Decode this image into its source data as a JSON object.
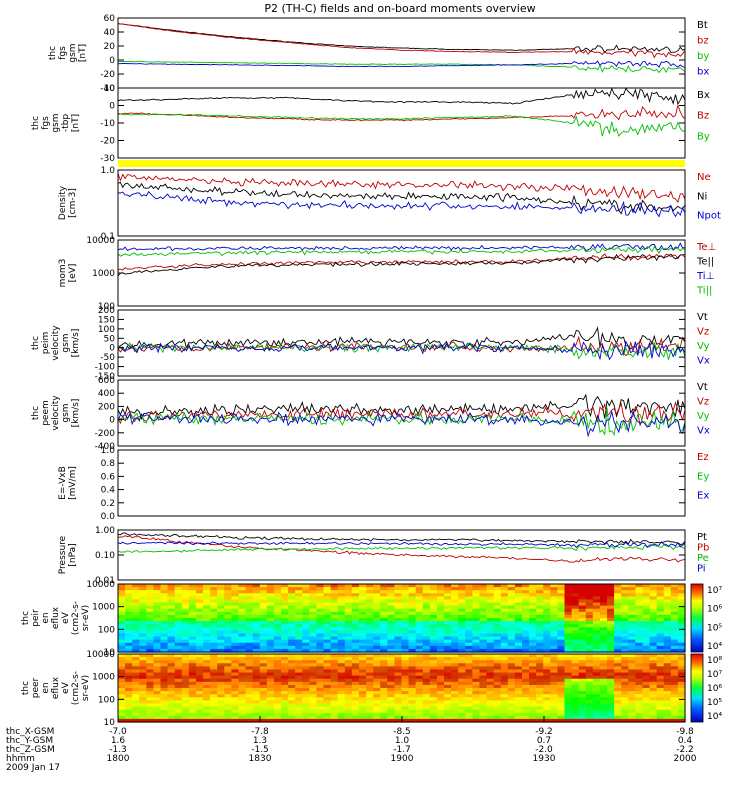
{
  "title": "P2 (TH-C) fields and on-board moments overview",
  "colors": {
    "black": "#000000",
    "red": "#c00000",
    "green": "#00c000",
    "blue": "#0000d0",
    "yellow": "#ffff00"
  },
  "chart_data": [
    {
      "type": "line",
      "ylabel": [
        "thc",
        "fgs",
        "gsm",
        "[nT]"
      ],
      "ylim": [
        -40,
        60
      ],
      "yticks": [
        "60",
        "40",
        "20",
        "0",
        "-20",
        "-40"
      ],
      "x": [
        0,
        10,
        20,
        30,
        40,
        50,
        60,
        70,
        80,
        90,
        100
      ],
      "series": [
        {
          "name": "Bt",
          "color": "black",
          "values": [
            52,
            42,
            33,
            26,
            20,
            17,
            15,
            14,
            16,
            16,
            15
          ]
        },
        {
          "name": "bz",
          "color": "red",
          "values": [
            52,
            41,
            32,
            25,
            18,
            14,
            12,
            11,
            12,
            10,
            9
          ]
        },
        {
          "name": "by",
          "color": "green",
          "values": [
            -2,
            -3,
            -4,
            -5,
            -6,
            -6,
            -6,
            -7,
            -10,
            -14,
            -12
          ]
        },
        {
          "name": "bx",
          "color": "blue",
          "values": [
            -5,
            -6,
            -7,
            -8,
            -9,
            -9,
            -8,
            -7,
            -5,
            -4,
            -7
          ]
        }
      ]
    },
    {
      "type": "line",
      "ylabel": [
        "thc",
        "fgs",
        "gsm",
        "-tbp",
        "[nT]"
      ],
      "ylim": [
        -35,
        15
      ],
      "yticks": [
        "10",
        "0",
        "-10",
        "-20",
        "-30"
      ],
      "x": [
        0,
        10,
        20,
        30,
        40,
        50,
        60,
        70,
        80,
        90,
        100
      ],
      "series": [
        {
          "name": "Bx",
          "color": "black",
          "values": [
            6,
            7,
            8,
            8,
            6,
            5,
            5,
            4,
            10,
            12,
            6
          ]
        },
        {
          "name": "Bz",
          "color": "red",
          "values": [
            -3,
            -4,
            -6,
            -7,
            -8,
            -8,
            -7,
            -6,
            -5,
            -4,
            -3
          ]
        },
        {
          "name": "By",
          "color": "green",
          "values": [
            -4,
            -4,
            -5,
            -6,
            -7,
            -7,
            -6,
            -5,
            -10,
            -15,
            -12
          ]
        }
      ]
    },
    {
      "type": "line",
      "ylabel": [
        "Density",
        "[cm-3]"
      ],
      "yscale": "log",
      "ylim": [
        0.1,
        1.2
      ],
      "yticks": [
        "1.0",
        "0.1"
      ],
      "x": [
        0,
        10,
        20,
        30,
        40,
        50,
        60,
        70,
        80,
        90,
        100
      ],
      "series": [
        {
          "name": "Ne",
          "color": "red",
          "values": [
            0.95,
            0.85,
            0.75,
            0.72,
            0.7,
            0.68,
            0.7,
            0.65,
            0.6,
            0.5,
            0.42
          ]
        },
        {
          "name": "Ni",
          "color": "black",
          "values": [
            0.7,
            0.6,
            0.52,
            0.48,
            0.46,
            0.44,
            0.45,
            0.43,
            0.36,
            0.3,
            0.28
          ]
        },
        {
          "name": "Npot",
          "color": "blue",
          "values": [
            0.5,
            0.42,
            0.36,
            0.33,
            0.32,
            0.31,
            0.31,
            0.3,
            0.29,
            0.27,
            0.25
          ]
        }
      ]
    },
    {
      "type": "line",
      "ylabel": [
        "mom3",
        "[eV]"
      ],
      "yscale": "log",
      "ylim": [
        100,
        14000
      ],
      "yticks": [
        "10000",
        "1000",
        "100"
      ],
      "x": [
        0,
        10,
        20,
        30,
        40,
        50,
        60,
        70,
        80,
        90,
        100
      ],
      "series": [
        {
          "name": "Te⊥",
          "color": "red",
          "values": [
            1500,
            2000,
            2300,
            2500,
            2600,
            2700,
            2700,
            2800,
            3500,
            4000,
            4200
          ]
        },
        {
          "name": "Te||",
          "color": "black",
          "values": [
            1100,
            1600,
            2000,
            2200,
            2300,
            2400,
            2400,
            2500,
            3200,
            3800,
            4000
          ]
        },
        {
          "name": "Ti⊥",
          "color": "blue",
          "values": [
            7000,
            7200,
            7400,
            7600,
            7600,
            7700,
            7700,
            7800,
            8200,
            8400,
            8500
          ]
        },
        {
          "name": "Ti||",
          "color": "green",
          "values": [
            4500,
            5000,
            5400,
            5600,
            5700,
            5800,
            5800,
            5900,
            6500,
            7000,
            7200
          ]
        }
      ]
    },
    {
      "type": "line",
      "ylabel": [
        "thc",
        "peim",
        "velocity",
        "gsm",
        "[km/s]"
      ],
      "ylim": [
        -150,
        200
      ],
      "yticks": [
        "200",
        "150",
        "100",
        "50",
        "0",
        "-50",
        "-100",
        "-150"
      ],
      "x": [
        0,
        10,
        20,
        30,
        40,
        50,
        60,
        70,
        80,
        90,
        100
      ],
      "series": [
        {
          "name": "Vt",
          "color": "black",
          "values": [
            15,
            20,
            25,
            30,
            35,
            30,
            30,
            25,
            60,
            40,
            45
          ]
        },
        {
          "name": "Vz",
          "color": "red",
          "values": [
            0,
            0,
            5,
            5,
            10,
            5,
            5,
            0,
            0,
            0,
            5
          ]
        },
        {
          "name": "Vy",
          "color": "green",
          "values": [
            0,
            0,
            0,
            0,
            0,
            0,
            5,
            0,
            -10,
            -20,
            -10
          ]
        },
        {
          "name": "Vx",
          "color": "blue",
          "values": [
            0,
            0,
            0,
            0,
            0,
            0,
            0,
            0,
            -10,
            -20,
            -10
          ]
        }
      ]
    },
    {
      "type": "line",
      "ylabel": [
        "thc",
        "peem",
        "velocity",
        "gsm",
        "[km/s]"
      ],
      "ylim": [
        -500,
        600
      ],
      "yticks": [
        "600",
        "400",
        "200",
        "0",
        "-200",
        "-400"
      ],
      "x": [
        0,
        10,
        20,
        30,
        40,
        50,
        60,
        70,
        80,
        90,
        100
      ],
      "series": [
        {
          "name": "Vt",
          "color": "black",
          "values": [
            60,
            70,
            100,
            120,
            110,
            110,
            110,
            100,
            200,
            180,
            130
          ]
        },
        {
          "name": "Vz",
          "color": "red",
          "values": [
            0,
            10,
            20,
            30,
            30,
            30,
            30,
            30,
            40,
            40,
            40
          ]
        },
        {
          "name": "Vy",
          "color": "green",
          "values": [
            -30,
            -40,
            -50,
            -50,
            -50,
            -50,
            -50,
            -50,
            -100,
            -120,
            -80
          ]
        },
        {
          "name": "Vx",
          "color": "blue",
          "values": [
            -30,
            -40,
            -60,
            -60,
            -50,
            -50,
            -50,
            -50,
            -120,
            -150,
            -100
          ]
        }
      ]
    },
    {
      "type": "line",
      "ylabel": [
        "E=-VxB",
        "[mV/m]"
      ],
      "ylim": [
        0,
        1
      ],
      "yticks": [
        "1.0",
        "0.8",
        "0.6",
        "0.4",
        "0.2",
        "0.0"
      ],
      "series": [
        {
          "name": "Ez",
          "color": "red",
          "values": []
        },
        {
          "name": "Ey",
          "color": "green",
          "values": []
        },
        {
          "name": "Ex",
          "color": "blue",
          "values": []
        }
      ]
    },
    {
      "type": "line",
      "ylabel": [
        "Pressure",
        "[nPa]"
      ],
      "yscale": "log",
      "ylim": [
        0.01,
        2
      ],
      "yticks": [
        "1.00",
        "0.10",
        "0.01"
      ],
      "x": [
        0,
        10,
        20,
        30,
        40,
        50,
        60,
        70,
        80,
        90,
        100
      ],
      "series": [
        {
          "name": "Pt",
          "color": "black",
          "values": [
            1.3,
            1.1,
            0.9,
            0.8,
            0.75,
            0.7,
            0.7,
            0.65,
            0.6,
            0.6,
            0.55
          ]
        },
        {
          "name": "Pb",
          "color": "red",
          "values": [
            1.1,
            0.6,
            0.35,
            0.25,
            0.18,
            0.14,
            0.12,
            0.1,
            0.07,
            0.1,
            0.08
          ]
        },
        {
          "name": "Pe",
          "color": "green",
          "values": [
            0.2,
            0.22,
            0.25,
            0.27,
            0.28,
            0.29,
            0.3,
            0.3,
            0.3,
            0.32,
            0.33
          ]
        },
        {
          "name": "Pi",
          "color": "blue",
          "values": [
            0.5,
            0.5,
            0.5,
            0.48,
            0.48,
            0.47,
            0.45,
            0.44,
            0.4,
            0.42,
            0.43
          ]
        }
      ]
    },
    {
      "type": "heatmap",
      "ylabel": [
        "thc",
        "peir",
        "en",
        "eflux",
        "eV",
        "(cm2-s-",
        "sr-eV)"
      ],
      "yscale": "log",
      "ylim": [
        8,
        20000
      ],
      "yticks": [
        "10000",
        "1000",
        "100",
        "10"
      ],
      "colorbar": {
        "labels": [
          "10⁷",
          "10⁶",
          "10⁵",
          "10⁴"
        ]
      }
    },
    {
      "type": "heatmap",
      "ylabel": [
        "thc",
        "peer",
        "en",
        "eflux",
        "eV",
        "(cm2-s-",
        "sr-eV)"
      ],
      "yscale": "log",
      "ylim": [
        8,
        20000
      ],
      "yticks": [
        "10000",
        "1000",
        "100",
        "10"
      ],
      "colorbar": {
        "labels": [
          "10⁸",
          "10⁷",
          "10⁶",
          "10⁵",
          "10⁴"
        ]
      }
    }
  ],
  "xaxis": {
    "rows": [
      {
        "label": "thc_X-GSM",
        "values": [
          "-7.0",
          "-7.8",
          "-8.5",
          "-9.2",
          "-9.8"
        ]
      },
      {
        "label": "thc_Y-GSM",
        "values": [
          "1.6",
          "1.3",
          "1.0",
          "0.7",
          "0.4"
        ]
      },
      {
        "label": "thc_Z-GSM",
        "values": [
          "-1.3",
          "-1.5",
          "-1.7",
          "-2.0",
          "-2.2"
        ]
      },
      {
        "label": "hhmm",
        "values": [
          "1800",
          "1830",
          "1900",
          "1930",
          "2000"
        ]
      }
    ],
    "date": "2009 Jan 17"
  }
}
